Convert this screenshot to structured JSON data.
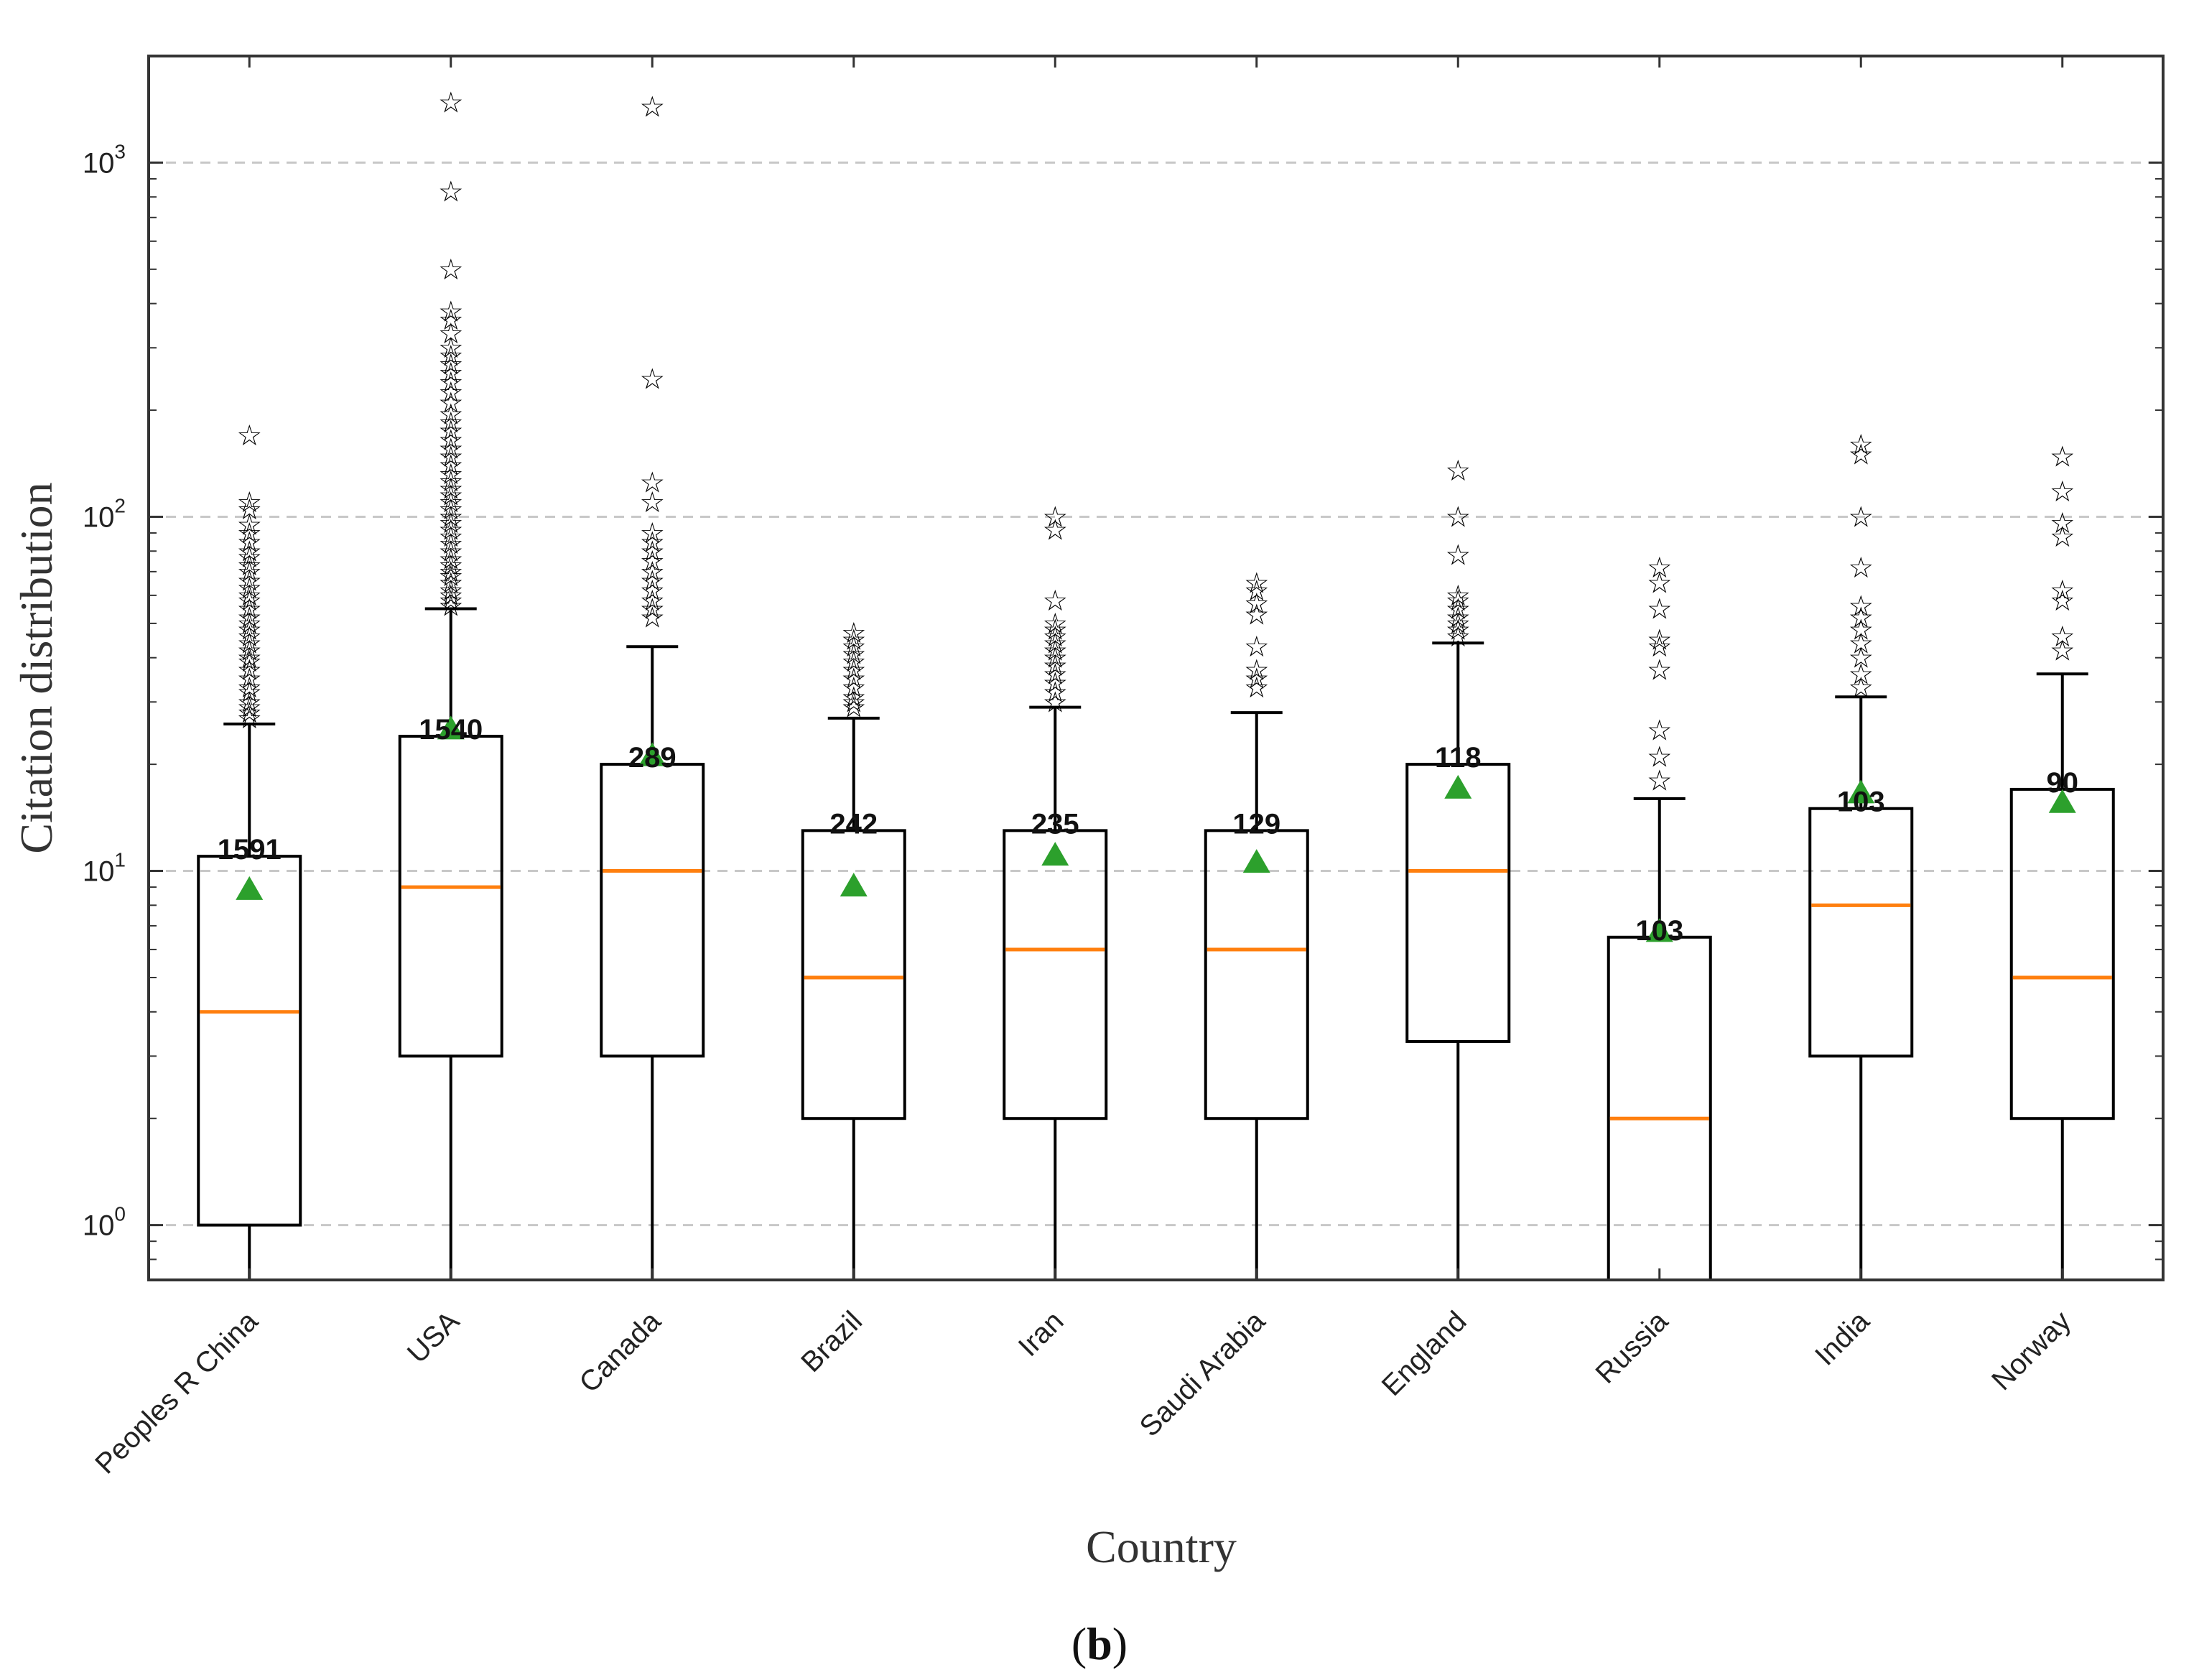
{
  "panel_label": {
    "open": "(",
    "letter": "b",
    "close": ")"
  },
  "chart_data": {
    "type": "box",
    "title": "",
    "xlabel": "Country",
    "ylabel": "Citation distribution",
    "yscale": "log",
    "ylim": [
      0.7,
      2000
    ],
    "yticks": [
      {
        "value": 1,
        "base": "10",
        "exp": "0"
      },
      {
        "value": 10,
        "base": "10",
        "exp": "1"
      },
      {
        "value": 100,
        "base": "10",
        "exp": "2"
      },
      {
        "value": 1000,
        "base": "10",
        "exp": "3"
      }
    ],
    "grid": "horizontal dashed",
    "colors": {
      "median": "#ff7f0e",
      "mean": "#2ca02c",
      "box": "#000000",
      "grid": "#c8c8c8"
    },
    "groups": [
      {
        "name": "Peoples R China",
        "count_label": "1591",
        "q1": 1,
        "median": 4,
        "q3": 11,
        "mean": 8.8,
        "whisker_low": 0.7,
        "whisker_high": 26,
        "outliers": [
          27,
          28,
          29,
          30,
          32,
          33,
          35,
          37,
          39,
          40,
          42,
          44,
          46,
          48,
          50,
          52,
          55,
          58,
          60,
          63,
          66,
          70,
          73,
          77,
          80,
          85,
          90,
          95,
          105,
          110,
          170
        ]
      },
      {
        "name": "USA",
        "count_label": "1540",
        "q1": 3,
        "median": 9,
        "q3": 24,
        "mean": 25,
        "whisker_low": 0.7,
        "whisker_high": 55,
        "outliers": [
          56,
          58,
          60,
          62,
          65,
          68,
          70,
          73,
          76,
          80,
          84,
          88,
          92,
          96,
          100,
          105,
          110,
          115,
          120,
          126,
          132,
          140,
          148,
          156,
          165,
          175,
          185,
          195,
          210,
          225,
          240,
          255,
          270,
          285,
          300,
          330,
          360,
          380,
          500,
          830,
          1480
        ]
      },
      {
        "name": "Canada",
        "count_label": "289",
        "q1": 3,
        "median": 10,
        "q3": 20,
        "mean": 21,
        "whisker_low": 0.7,
        "whisker_high": 43,
        "outliers": [
          52,
          55,
          58,
          62,
          66,
          70,
          75,
          80,
          85,
          90,
          110,
          125,
          245,
          1440
        ]
      },
      {
        "name": "Brazil",
        "count_label": "242",
        "q1": 2,
        "median": 5,
        "q3": 13,
        "mean": 9,
        "whisker_low": 0.7,
        "whisker_high": 27,
        "outliers": [
          29,
          30,
          31,
          33,
          35,
          37,
          39,
          41,
          43,
          45,
          47
        ]
      },
      {
        "name": "Iran",
        "count_label": "235",
        "q1": 2,
        "median": 6,
        "q3": 13,
        "mean": 11,
        "whisker_low": 0.7,
        "whisker_high": 29,
        "outliers": [
          30,
          32,
          34,
          36,
          38,
          40,
          42,
          44,
          46,
          48,
          50,
          58,
          92,
          100
        ]
      },
      {
        "name": "Saudi Arabia",
        "count_label": "129",
        "q1": 2,
        "median": 6,
        "q3": 13,
        "mean": 10.5,
        "whisker_low": 0.7,
        "whisker_high": 28,
        "outliers": [
          33,
          35,
          37,
          43,
          53,
          57,
          62,
          65
        ]
      },
      {
        "name": "England",
        "count_label": "118",
        "q1": 3.3,
        "median": 10,
        "q3": 20,
        "mean": 17,
        "whisker_low": 0.7,
        "whisker_high": 44,
        "outliers": [
          46,
          48,
          50,
          52,
          55,
          58,
          60,
          78,
          100,
          135
        ]
      },
      {
        "name": "Russia",
        "count_label": "103",
        "q1": 0.7,
        "median": 2,
        "q3": 6.5,
        "mean": 6.7,
        "whisker_low": 0.7,
        "whisker_high": 16,
        "outliers": [
          18,
          21,
          25,
          37,
          43,
          45,
          55,
          65,
          72
        ]
      },
      {
        "name": "India",
        "count_label": "103",
        "q1": 3,
        "median": 8,
        "q3": 15,
        "mean": 16.5,
        "whisker_low": 0.7,
        "whisker_high": 31,
        "outliers": [
          33,
          36,
          40,
          44,
          48,
          52,
          56,
          72,
          100,
          150,
          160
        ]
      },
      {
        "name": "Norway",
        "count_label": "90",
        "q1": 2,
        "median": 5,
        "q3": 17,
        "mean": 15.5,
        "whisker_low": 0.7,
        "whisker_high": 36,
        "outliers": [
          42,
          46,
          58,
          62,
          88,
          96,
          118,
          148
        ]
      }
    ]
  }
}
